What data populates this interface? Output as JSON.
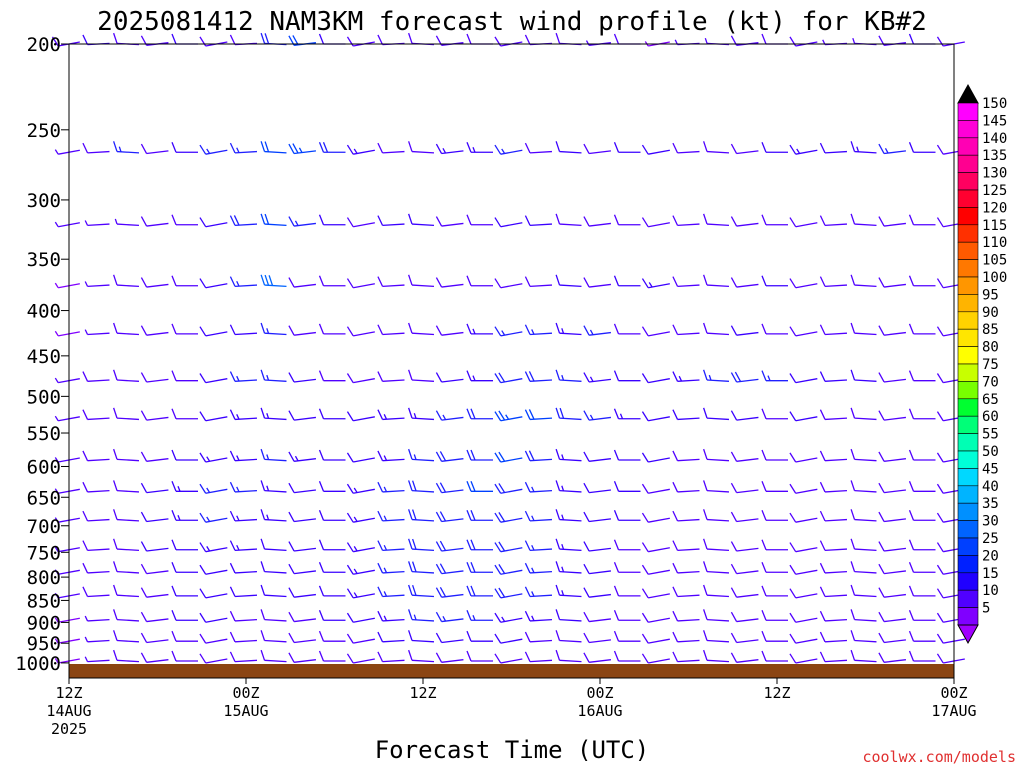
{
  "chart_data": {
    "type": "wind-barb",
    "title": "2025081412 NAM3KM forecast wind profile (kt) for KB#2",
    "xlabel": "Forecast Time (UTC)",
    "credit": "coolwx.com/models",
    "y_ticks": [
      200,
      250,
      300,
      350,
      400,
      450,
      500,
      550,
      600,
      650,
      700,
      750,
      800,
      850,
      900,
      950,
      1000
    ],
    "ylim": [
      1040,
      200
    ],
    "y_scale": "log-pressure",
    "x_ticks": [
      {
        "hour": 0,
        "lines": [
          "12Z",
          "14AUG",
          "2025"
        ]
      },
      {
        "hour": 12,
        "lines": [
          "00Z",
          "15AUG"
        ]
      },
      {
        "hour": 24,
        "lines": [
          "12Z"
        ]
      },
      {
        "hour": 36,
        "lines": [
          "00Z",
          "16AUG"
        ]
      },
      {
        "hour": 48,
        "lines": [
          "12Z"
        ]
      },
      {
        "hour": 60,
        "lines": [
          "00Z",
          "17AUG"
        ]
      }
    ],
    "xlim_hours": [
      0,
      60
    ],
    "time_step_hours": 2,
    "ground_color": "#8b4513",
    "colorbar": {
      "labels": [
        150,
        145,
        140,
        135,
        130,
        125,
        120,
        115,
        110,
        105,
        100,
        95,
        90,
        85,
        80,
        75,
        70,
        65,
        60,
        55,
        50,
        45,
        40,
        35,
        30,
        25,
        20,
        15,
        10,
        5
      ],
      "colors": [
        "#ff00ff",
        "#ff00d8",
        "#ff00b4",
        "#ff0090",
        "#ff0060",
        "#ff0030",
        "#ff0000",
        "#ff3000",
        "#ff5a00",
        "#ff7800",
        "#ff9600",
        "#ffb400",
        "#ffd200",
        "#ffe600",
        "#ffff00",
        "#c8ff00",
        "#78ff00",
        "#00ff30",
        "#00ff78",
        "#00ffb4",
        "#00ffd8",
        "#00d8ff",
        "#00b4ff",
        "#0090ff",
        "#0064ff",
        "#0040ff",
        "#0020ff",
        "#2000ff",
        "#5000ff",
        "#8000ff"
      ],
      "top_arrow_color": "#000000",
      "bottom_arrow_color": "#a000ff"
    },
    "series": [
      {
        "pressure": 200,
        "speed_kt": [
          12,
          14,
          12,
          12,
          14,
          12,
          10,
          20,
          24,
          14,
          12,
          12,
          10,
          10,
          10,
          12,
          10,
          10,
          8,
          10,
          6,
          8,
          8,
          10,
          10,
          10,
          8,
          8,
          12,
          14,
          10
        ]
      },
      {
        "pressure": 265,
        "speed_kt": [
          8,
          10,
          18,
          10,
          14,
          18,
          18,
          24,
          26,
          20,
          16,
          12,
          10,
          16,
          16,
          18,
          12,
          14,
          10,
          14,
          14,
          10,
          10,
          12,
          14,
          16,
          14,
          16,
          18,
          14,
          12
        ]
      },
      {
        "pressure": 320,
        "speed_kt": [
          8,
          8,
          8,
          10,
          10,
          14,
          20,
          24,
          18,
          14,
          12,
          14,
          14,
          12,
          12,
          14,
          14,
          10,
          10,
          10,
          10,
          10,
          10,
          12,
          10,
          12,
          10,
          10,
          12,
          12,
          12
        ]
      },
      {
        "pressure": 375,
        "speed_kt": [
          6,
          8,
          10,
          12,
          12,
          14,
          18,
          30,
          12,
          12,
          10,
          10,
          10,
          10,
          12,
          10,
          10,
          14,
          10,
          14,
          16,
          12,
          12,
          12,
          14,
          12,
          12,
          10,
          12,
          10,
          10
        ]
      },
      {
        "pressure": 425,
        "speed_kt": [
          6,
          8,
          10,
          10,
          12,
          14,
          14,
          18,
          12,
          10,
          12,
          12,
          12,
          12,
          16,
          18,
          18,
          16,
          18,
          12,
          12,
          10,
          12,
          14,
          12,
          10,
          12,
          10,
          12,
          10,
          10
        ]
      },
      {
        "pressure": 480,
        "speed_kt": [
          8,
          10,
          10,
          12,
          12,
          14,
          18,
          18,
          14,
          12,
          12,
          12,
          12,
          14,
          16,
          20,
          20,
          18,
          16,
          14,
          14,
          16,
          18,
          20,
          18,
          14,
          14,
          14,
          12,
          12,
          12
        ]
      },
      {
        "pressure": 530,
        "speed_kt": [
          8,
          10,
          10,
          12,
          12,
          14,
          16,
          16,
          14,
          14,
          14,
          16,
          16,
          18,
          20,
          26,
          24,
          20,
          18,
          16,
          14,
          14,
          14,
          14,
          12,
          14,
          12,
          12,
          10,
          10,
          10
        ]
      },
      {
        "pressure": 590,
        "speed_kt": [
          8,
          10,
          10,
          12,
          14,
          16,
          16,
          18,
          16,
          14,
          14,
          16,
          18,
          20,
          22,
          24,
          20,
          16,
          14,
          14,
          14,
          12,
          12,
          12,
          12,
          12,
          12,
          12,
          10,
          10,
          10
        ]
      },
      {
        "pressure": 640,
        "speed_kt": [
          8,
          10,
          12,
          14,
          16,
          18,
          18,
          16,
          14,
          14,
          16,
          18,
          20,
          22,
          24,
          20,
          18,
          16,
          14,
          14,
          12,
          12,
          12,
          12,
          12,
          12,
          12,
          10,
          10,
          10,
          10
        ]
      },
      {
        "pressure": 690,
        "speed_kt": [
          8,
          10,
          12,
          14,
          16,
          18,
          16,
          16,
          14,
          14,
          16,
          18,
          20,
          22,
          22,
          20,
          18,
          16,
          14,
          14,
          12,
          12,
          12,
          12,
          12,
          12,
          10,
          10,
          10,
          10,
          10
        ]
      },
      {
        "pressure": 745,
        "speed_kt": [
          8,
          10,
          12,
          14,
          14,
          16,
          16,
          14,
          14,
          14,
          16,
          18,
          20,
          22,
          22,
          20,
          18,
          16,
          14,
          12,
          12,
          12,
          12,
          12,
          12,
          10,
          10,
          10,
          10,
          10,
          10
        ]
      },
      {
        "pressure": 790,
        "speed_kt": [
          8,
          10,
          10,
          12,
          14,
          14,
          14,
          14,
          14,
          14,
          16,
          18,
          20,
          22,
          22,
          20,
          18,
          16,
          14,
          12,
          12,
          12,
          12,
          12,
          10,
          10,
          10,
          10,
          10,
          10,
          10
        ]
      },
      {
        "pressure": 840,
        "speed_kt": [
          8,
          10,
          10,
          12,
          14,
          14,
          14,
          14,
          14,
          14,
          16,
          18,
          20,
          22,
          22,
          20,
          18,
          16,
          14,
          12,
          12,
          12,
          12,
          10,
          10,
          10,
          10,
          10,
          10,
          10,
          10
        ]
      },
      {
        "pressure": 895,
        "speed_kt": [
          6,
          8,
          10,
          12,
          14,
          14,
          12,
          12,
          12,
          14,
          14,
          16,
          18,
          18,
          18,
          16,
          16,
          14,
          12,
          12,
          10,
          10,
          10,
          10,
          10,
          10,
          10,
          10,
          10,
          10,
          10
        ]
      },
      {
        "pressure": 945,
        "speed_kt": [
          6,
          8,
          10,
          12,
          12,
          12,
          12,
          12,
          12,
          12,
          12,
          14,
          14,
          14,
          14,
          14,
          12,
          12,
          12,
          10,
          10,
          10,
          10,
          10,
          10,
          10,
          10,
          10,
          10,
          10,
          10
        ]
      },
      {
        "pressure": 995,
        "speed_kt": [
          5,
          8,
          10,
          10,
          10,
          10,
          10,
          10,
          10,
          10,
          10,
          12,
          12,
          12,
          12,
          12,
          10,
          10,
          10,
          10,
          10,
          10,
          10,
          10,
          10,
          10,
          10,
          10,
          10,
          10,
          10
        ]
      }
    ]
  }
}
